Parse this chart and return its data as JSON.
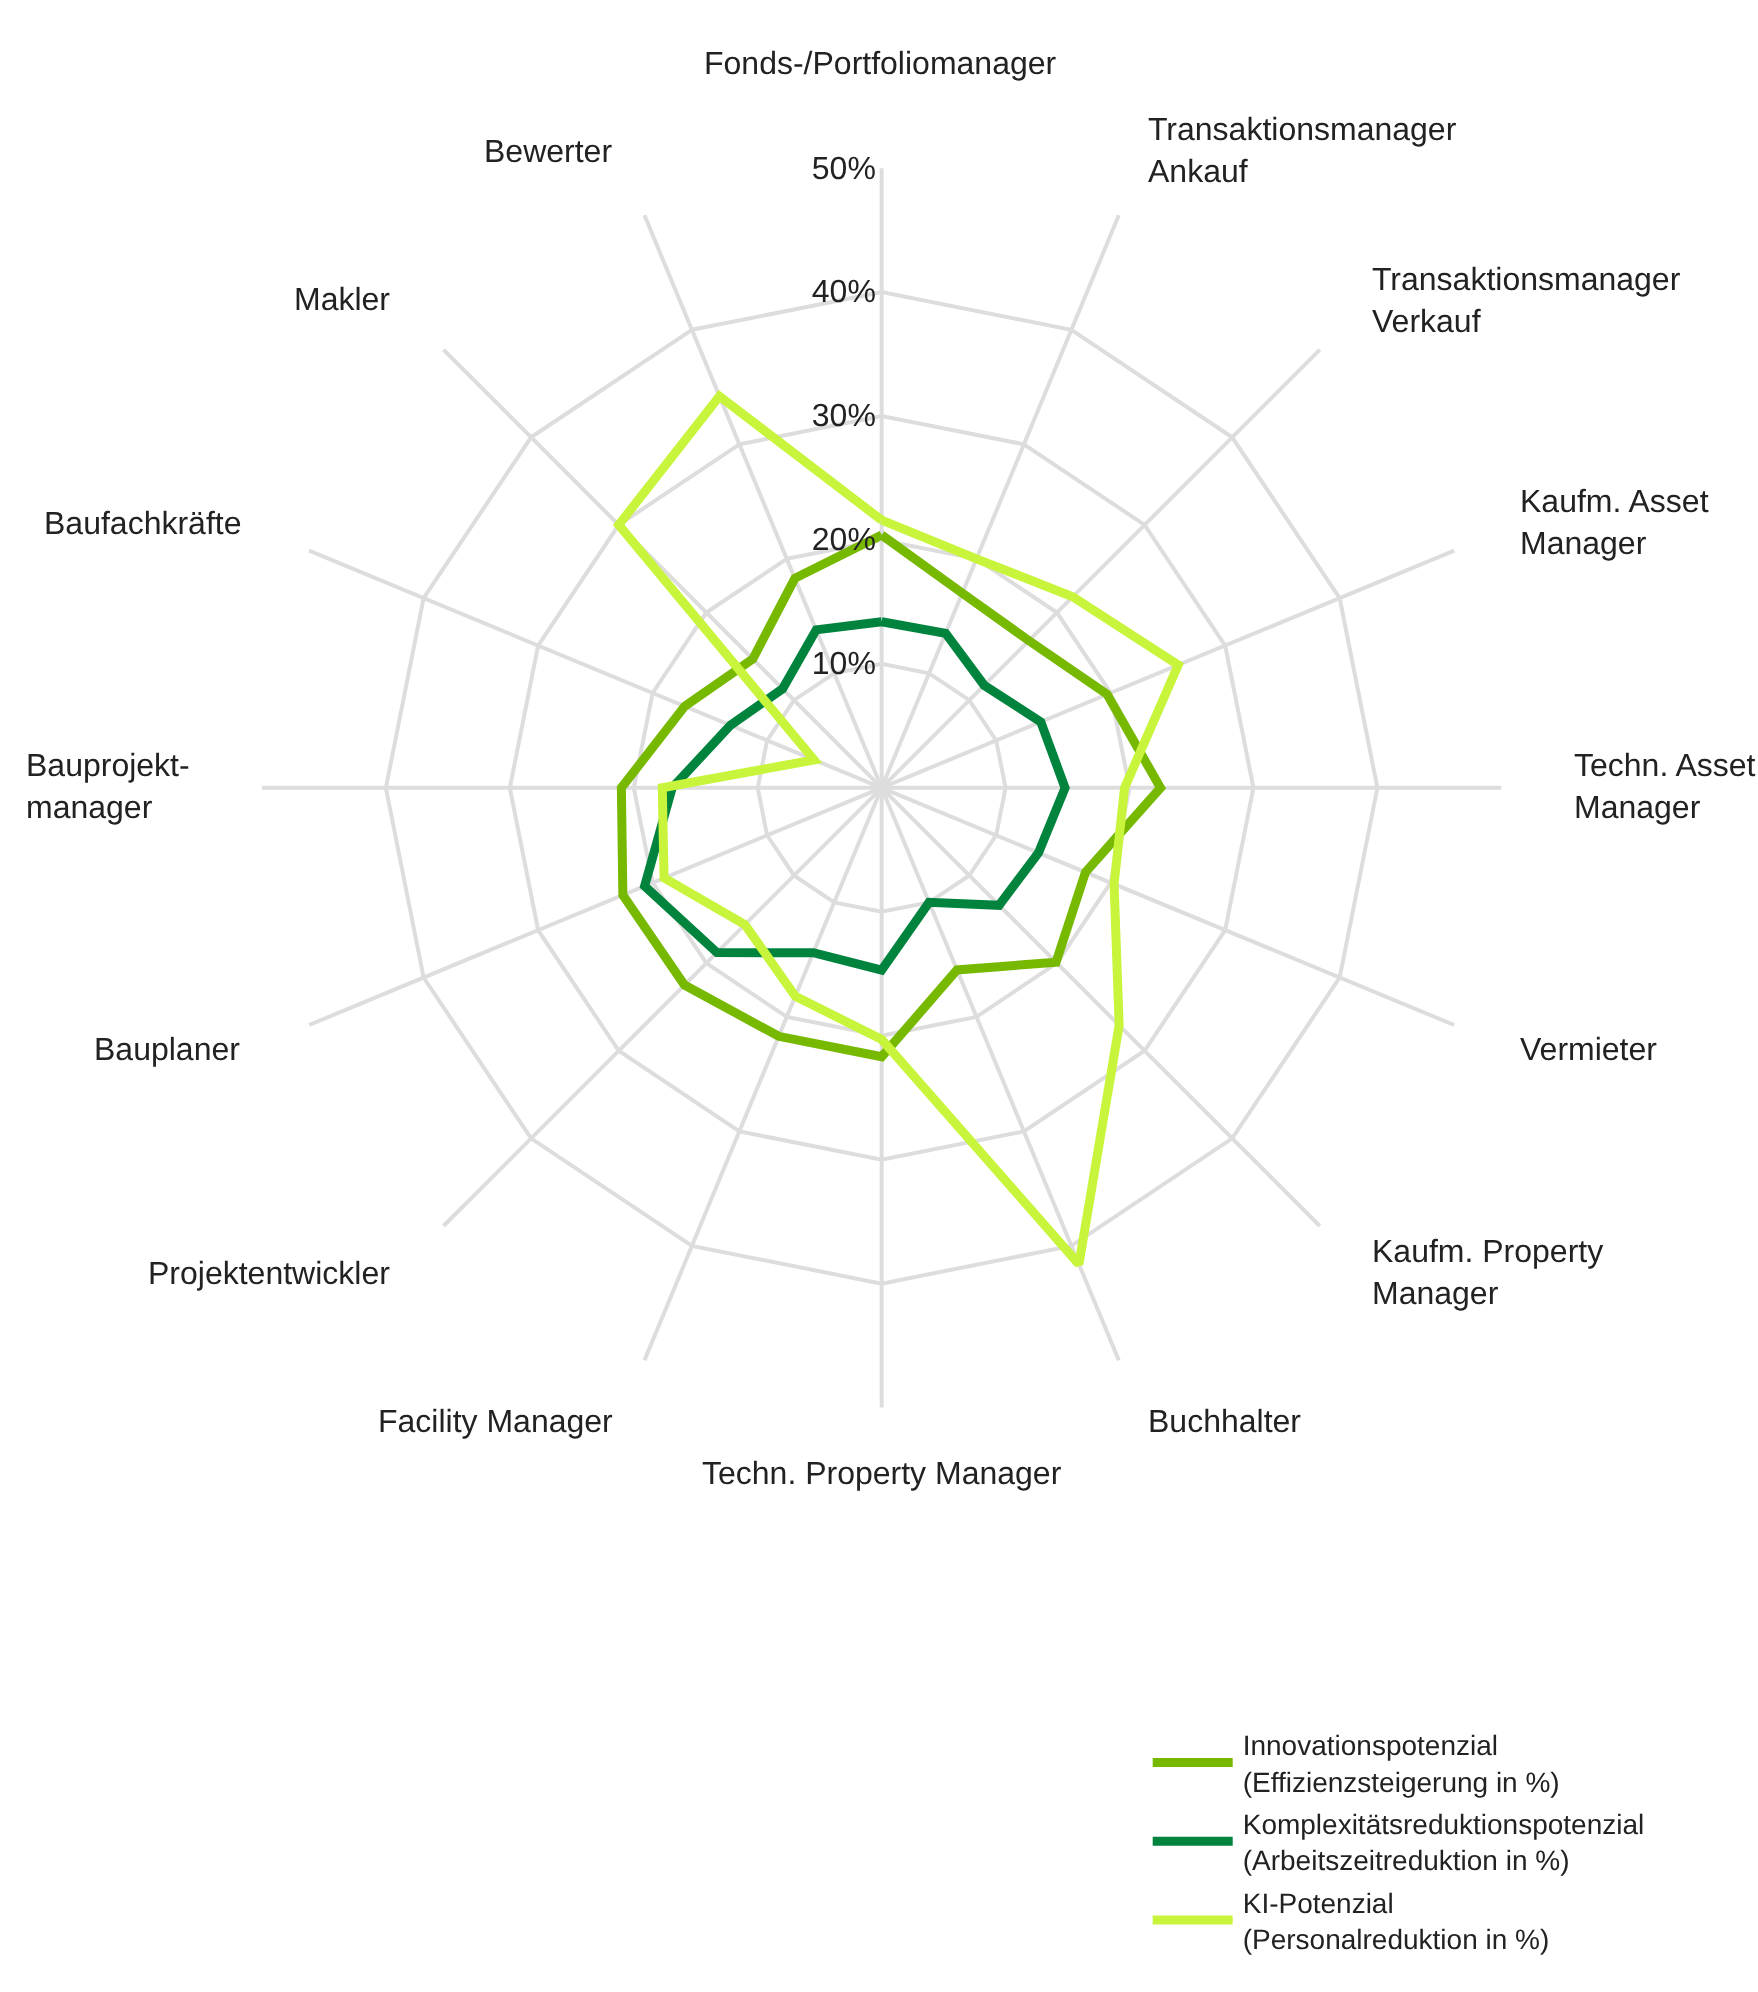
{
  "chart_data": {
    "type": "radar",
    "categories": [
      "Fonds-/Portfoliomanager",
      "Transaktionsmanager\nAnkauf",
      "Transaktionsmanager\nVerkauf",
      "Kaufm. Asset\nManager",
      "Techn. Asset\nManager",
      "Vermieter",
      "Kaufm. Property\nManager",
      "Buchhalter",
      "Techn. Property Manager",
      "Facility Manager",
      "Projektentwickler",
      "Bauplaner",
      "Bauprojekt-\nmanager",
      "Baufachkräfte",
      "Makler",
      "Bewerter"
    ],
    "series": [
      {
        "name": "Innovationspotenzial\n(Effizienzsteigerung in %)",
        "color": "#76b900",
        "values": [
          20.4,
          17,
          16.8,
          19.7,
          22.5,
          17.8,
          19.9,
          15.9,
          21.7,
          21.7,
          22.5,
          22.6,
          21,
          17.2,
          14.7,
          18.3
        ]
      },
      {
        "name": "Komplexitätsreduktionspotenzial\n(Arbeitszeitreduktion in %)",
        "color": "#00843d",
        "values": [
          13.4,
          13.5,
          11.7,
          13.9,
          14.8,
          13.7,
          13.4,
          10,
          14.7,
          14.4,
          18.8,
          20.7,
          16.9,
          13.2,
          11.3,
          13.8
        ]
      },
      {
        "name": "KI-Potenzial\n(Personalreduktion in %)",
        "color": "#c8f53c",
        "values": [
          21.6,
          20,
          21.8,
          25.9,
          19.6,
          20.3,
          27.1,
          41.6,
          20.3,
          18.2,
          15.6,
          19,
          17.7,
          5.9,
          30,
          34.2
        ]
      }
    ],
    "ylim": [
      0,
      50
    ],
    "yticks": [
      {
        "value": 10,
        "label": "10%"
      },
      {
        "value": 20,
        "label": "20%"
      },
      {
        "value": 30,
        "label": "30%"
      },
      {
        "value": 40,
        "label": "40%"
      },
      {
        "value": 50,
        "label": "50%"
      }
    ],
    "grid": true,
    "legend": "bottom right",
    "marker": "none",
    "line_style": "solid"
  }
}
